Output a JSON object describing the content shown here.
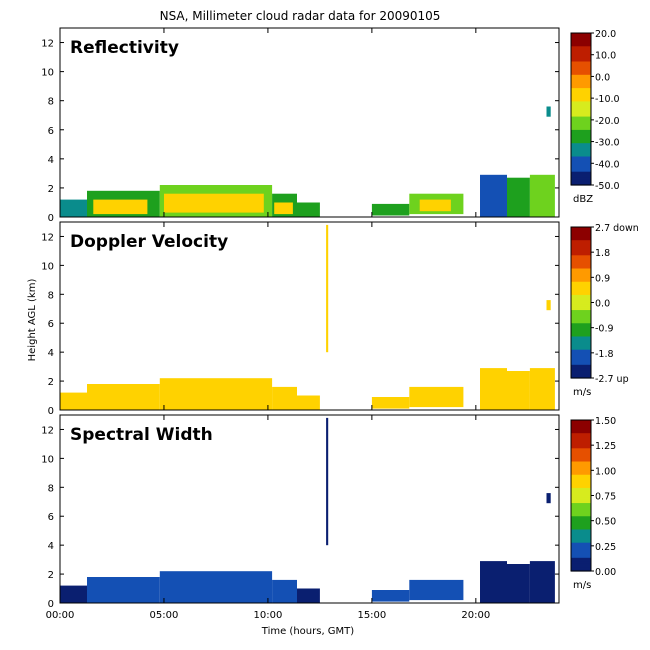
{
  "figure": {
    "title": "NSA, Millimeter cloud radar data for 20090105",
    "xlabel": "Time (hours, GMT)",
    "ylabel": "Height AGL (km)"
  },
  "colormap": [
    "#0a1f70",
    "#1450b4",
    "#0a8c8c",
    "#1ea01e",
    "#6ed21e",
    "#d7eb1e",
    "#ffd200",
    "#ff9a00",
    "#e65000",
    "#be1e00",
    "#8c0000"
  ],
  "chart_data": [
    {
      "type": "heatmap",
      "panel_label": "Reflectivity",
      "x_ticks": [
        "00:00",
        "05:00",
        "10:00",
        "15:00",
        "20:00"
      ],
      "x_tick_values": [
        0,
        5,
        10,
        15,
        20
      ],
      "xlim": [
        0,
        24
      ],
      "y_ticks": [
        "0",
        "2",
        "4",
        "6",
        "8",
        "10",
        "12"
      ],
      "y_tick_values": [
        0,
        2,
        4,
        6,
        8,
        10,
        12
      ],
      "ylim": [
        0,
        13
      ],
      "colorbar": {
        "ticks": [
          "20.0",
          "10.0",
          "0.0",
          "-10.0",
          "-20.0",
          "-30.0",
          "-40.0",
          "-50.0"
        ],
        "tick_values": [
          20,
          10,
          0,
          -10,
          -20,
          -30,
          -40,
          -50
        ],
        "range": [
          -50,
          20
        ],
        "unit": "dBZ"
      },
      "cells": [
        [
          0.0,
          1.3,
          0,
          1.2,
          -32
        ],
        [
          1.3,
          4.8,
          0,
          1.8,
          -28
        ],
        [
          4.8,
          10.2,
          0,
          2.2,
          -22
        ],
        [
          10.2,
          11.4,
          0,
          1.6,
          -25
        ],
        [
          11.4,
          12.5,
          0,
          1.0,
          -30
        ],
        [
          1.6,
          4.2,
          0.2,
          1.2,
          -8
        ],
        [
          5.0,
          9.8,
          0.3,
          1.6,
          -6
        ],
        [
          10.3,
          11.2,
          0.2,
          1.0,
          -10
        ],
        [
          15.0,
          16.8,
          0.1,
          0.9,
          -28
        ],
        [
          16.8,
          19.4,
          0.2,
          1.6,
          -24
        ],
        [
          17.3,
          18.8,
          0.4,
          1.2,
          -8
        ],
        [
          20.2,
          21.5,
          0,
          2.9,
          -38
        ],
        [
          21.5,
          22.6,
          0,
          2.7,
          -30
        ],
        [
          22.6,
          23.8,
          0,
          2.9,
          -20
        ],
        [
          23.4,
          23.6,
          6.9,
          7.6,
          -32
        ]
      ]
    },
    {
      "type": "heatmap",
      "panel_label": "Doppler Velocity",
      "x_ticks": [
        "00:00",
        "05:00",
        "10:00",
        "15:00",
        "20:00"
      ],
      "x_tick_values": [
        0,
        5,
        10,
        15,
        20
      ],
      "xlim": [
        0,
        24
      ],
      "y_ticks": [
        "0",
        "2",
        "4",
        "6",
        "8",
        "10",
        "12"
      ],
      "y_tick_values": [
        0,
        2,
        4,
        6,
        8,
        10,
        12
      ],
      "ylim": [
        0,
        13
      ],
      "colorbar": {
        "ticks": [
          "2.7 down",
          "1.8",
          "0.9",
          "0.0",
          "-0.9",
          "-1.8",
          "-2.7 up"
        ],
        "tick_values": [
          2.7,
          1.8,
          0.9,
          0.0,
          -0.9,
          -1.8,
          -2.7
        ],
        "range": [
          -2.7,
          2.7
        ],
        "unit": "m/s"
      },
      "cells": [
        [
          0.0,
          1.3,
          0,
          1.2,
          0.5
        ],
        [
          1.3,
          4.8,
          0,
          1.8,
          0.6
        ],
        [
          4.8,
          10.2,
          0,
          2.2,
          0.6
        ],
        [
          10.2,
          11.4,
          0,
          1.6,
          0.5
        ],
        [
          11.4,
          12.5,
          0,
          1.0,
          0.4
        ],
        [
          12.8,
          12.9,
          4.0,
          12.8,
          0.4
        ],
        [
          15.0,
          16.8,
          0.1,
          0.9,
          0.3
        ],
        [
          16.8,
          19.4,
          0.2,
          1.6,
          0.4
        ],
        [
          20.2,
          21.5,
          0,
          2.9,
          0.5
        ],
        [
          21.5,
          22.6,
          0,
          2.7,
          0.6
        ],
        [
          22.6,
          23.8,
          0,
          2.9,
          0.5
        ],
        [
          23.4,
          23.6,
          6.9,
          7.6,
          0.3
        ]
      ]
    },
    {
      "type": "heatmap",
      "panel_label": "Spectral Width",
      "x_ticks": [
        "00:00",
        "05:00",
        "10:00",
        "15:00",
        "20:00"
      ],
      "x_tick_values": [
        0,
        5,
        10,
        15,
        20
      ],
      "xlim": [
        0,
        24
      ],
      "y_ticks": [
        "0",
        "2",
        "4",
        "6",
        "8",
        "10",
        "12"
      ],
      "y_tick_values": [
        0,
        2,
        4,
        6,
        8,
        10,
        12
      ],
      "ylim": [
        0,
        13
      ],
      "colorbar": {
        "ticks": [
          "1.50",
          "1.25",
          "1.00",
          "0.75",
          "0.50",
          "0.25",
          "0.00"
        ],
        "tick_values": [
          1.5,
          1.25,
          1.0,
          0.75,
          0.5,
          0.25,
          0.0
        ],
        "range": [
          0,
          1.5
        ],
        "unit": "m/s"
      },
      "cells": [
        [
          0.0,
          1.3,
          0,
          1.2,
          0.12
        ],
        [
          1.3,
          4.8,
          0,
          1.8,
          0.18
        ],
        [
          4.8,
          10.2,
          0,
          2.2,
          0.22
        ],
        [
          10.2,
          11.4,
          0,
          1.6,
          0.16
        ],
        [
          11.4,
          12.5,
          0,
          1.0,
          0.12
        ],
        [
          12.8,
          12.9,
          4.0,
          12.8,
          0.08
        ],
        [
          15.0,
          16.8,
          0.1,
          0.9,
          0.15
        ],
        [
          16.8,
          19.4,
          0.2,
          1.6,
          0.25
        ],
        [
          20.2,
          21.5,
          0,
          2.9,
          0.1
        ],
        [
          21.5,
          22.6,
          0,
          2.7,
          0.1
        ],
        [
          22.6,
          23.8,
          0,
          2.9,
          0.08
        ],
        [
          23.4,
          23.6,
          6.9,
          7.6,
          0.12
        ]
      ]
    }
  ]
}
